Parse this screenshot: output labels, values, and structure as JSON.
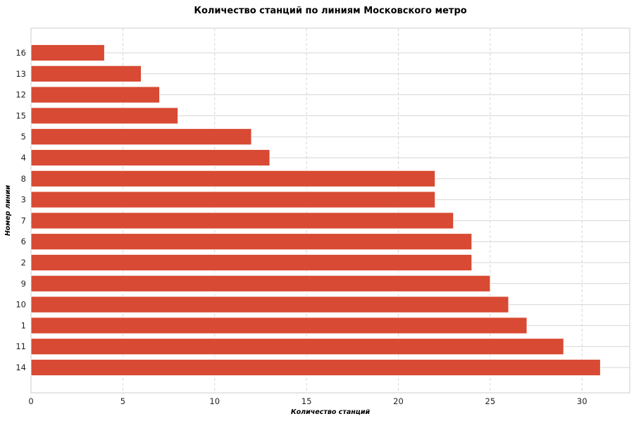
{
  "colors": {
    "bar": "#d84a33",
    "grid": "#d6d6d6",
    "frame": "#cccccc",
    "background": "#ffffff"
  },
  "chart_data": {
    "type": "bar",
    "orientation": "horizontal",
    "title": "Количество станций по линиям Московского метро",
    "xlabel": "Количество станций",
    "ylabel": "Номер линии",
    "categories": [
      "16",
      "13",
      "12",
      "15",
      "5",
      "4",
      "8",
      "3",
      "7",
      "6",
      "2",
      "9",
      "10",
      "1",
      "11",
      "14"
    ],
    "values": [
      4,
      6,
      7,
      8,
      12,
      13,
      22,
      22,
      23,
      24,
      24,
      25,
      26,
      27,
      29,
      31
    ],
    "xlim": [
      0,
      32.6
    ],
    "xticks": [
      0,
      5,
      10,
      15,
      20,
      25,
      30
    ],
    "grid": true,
    "legend": "none"
  }
}
